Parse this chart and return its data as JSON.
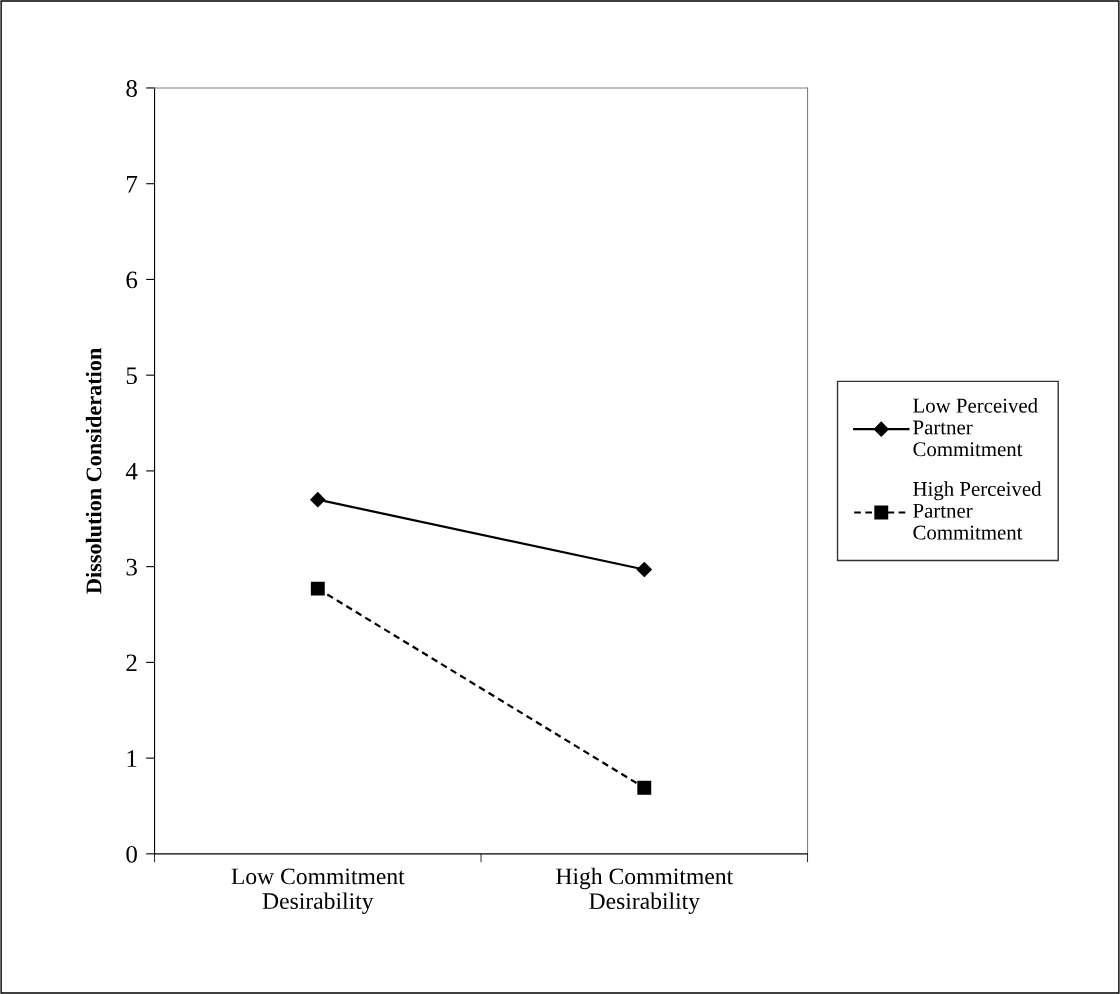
{
  "chart_data": {
    "type": "line",
    "ylabel": "Dissolution Consideration",
    "categories": [
      "Low Commitment Desirability",
      "High Commitment Desirability"
    ],
    "series": [
      {
        "name": "Low Perceived Partner Commitment",
        "color": "#000000",
        "values": [
          3.7,
          2.97
        ],
        "marker": "diamond",
        "line_style": "solid"
      },
      {
        "name": "High Perceived Partner Commitment",
        "color": "#000000",
        "values": [
          2.77,
          0.69
        ],
        "marker": "square",
        "line_style": "dashed"
      }
    ],
    "ylim": [
      0,
      8
    ],
    "yticks": [
      0,
      1,
      2,
      3,
      4,
      5,
      6,
      7,
      8
    ],
    "grid": false,
    "legend": "right"
  }
}
